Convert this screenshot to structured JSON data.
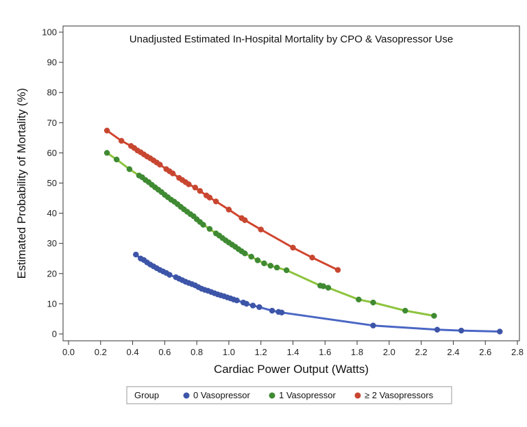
{
  "chart_data": {
    "type": "scatter",
    "title": "Unadjusted Estimated In-Hospital Mortality by CPO & Vasopressor Use",
    "xlabel": "Cardiac Power Output (Watts)",
    "ylabel": "Estimated Probability of Mortality (%)",
    "xlim": [
      0.0,
      2.8
    ],
    "ylim": [
      0,
      100
    ],
    "xticks": [
      0.0,
      0.2,
      0.4,
      0.6,
      0.8,
      1.0,
      1.2,
      1.4,
      1.6,
      1.8,
      2.0,
      2.2,
      2.4,
      2.6,
      2.8
    ],
    "xtick_labels": [
      "0.0",
      "0.2",
      "0.4",
      "0.6",
      "0.8",
      "1.0",
      "1.2",
      "1.4",
      "1.6",
      "1.8",
      "2.0",
      "2.2",
      "2.4",
      "2.6",
      "2.8"
    ],
    "yticks": [
      0,
      10,
      20,
      30,
      40,
      50,
      60,
      70,
      80,
      90,
      100
    ],
    "ytick_labels": [
      "0",
      "10",
      "20",
      "30",
      "40",
      "50",
      "60",
      "70",
      "80",
      "90",
      "100"
    ],
    "grid": false,
    "legend": {
      "title": "Group",
      "placement": "bottom",
      "entries": [
        "0 Vasopressor",
        "1 Vasopressor",
        "≥ 2 Vasopressors"
      ]
    },
    "series": [
      {
        "name": "0 Vasopressor",
        "marker_color": "#3d55a8",
        "line_color": "#4a66c4",
        "points": [
          [
            0.42,
            26.3
          ],
          [
            0.45,
            25.0
          ],
          [
            0.47,
            24.5
          ],
          [
            0.49,
            23.7
          ],
          [
            0.51,
            23.0
          ],
          [
            0.53,
            22.4
          ],
          [
            0.55,
            21.8
          ],
          [
            0.57,
            21.2
          ],
          [
            0.59,
            20.7
          ],
          [
            0.61,
            20.2
          ],
          [
            0.63,
            19.6
          ],
          [
            0.67,
            18.8
          ],
          [
            0.69,
            18.3
          ],
          [
            0.71,
            17.8
          ],
          [
            0.73,
            17.3
          ],
          [
            0.75,
            16.9
          ],
          [
            0.77,
            16.5
          ],
          [
            0.79,
            16.1
          ],
          [
            0.81,
            15.5
          ],
          [
            0.83,
            15.0
          ],
          [
            0.85,
            14.6
          ],
          [
            0.87,
            14.3
          ],
          [
            0.89,
            13.9
          ],
          [
            0.91,
            13.5
          ],
          [
            0.93,
            13.1
          ],
          [
            0.95,
            12.8
          ],
          [
            0.97,
            12.5
          ],
          [
            0.99,
            12.1
          ],
          [
            1.01,
            11.8
          ],
          [
            1.03,
            11.4
          ],
          [
            1.05,
            11.1
          ],
          [
            1.09,
            10.4
          ],
          [
            1.11,
            10.0
          ],
          [
            1.15,
            9.4
          ],
          [
            1.19,
            8.9
          ],
          [
            1.27,
            7.7
          ],
          [
            1.31,
            7.3
          ],
          [
            1.33,
            7.1
          ],
          [
            1.9,
            2.8
          ],
          [
            2.3,
            1.4
          ],
          [
            2.45,
            1.1
          ],
          [
            2.69,
            0.8
          ]
        ]
      },
      {
        "name": "1 Vasopressor",
        "marker_color": "#3f8a32",
        "line_color": "#8cc43c",
        "points": [
          [
            0.24,
            60.0
          ],
          [
            0.3,
            57.8
          ],
          [
            0.38,
            54.6
          ],
          [
            0.44,
            52.5
          ],
          [
            0.46,
            51.9
          ],
          [
            0.48,
            51.0
          ],
          [
            0.5,
            50.3
          ],
          [
            0.52,
            49.4
          ],
          [
            0.54,
            48.6
          ],
          [
            0.56,
            47.8
          ],
          [
            0.58,
            47.0
          ],
          [
            0.6,
            46.1
          ],
          [
            0.62,
            45.3
          ],
          [
            0.64,
            44.5
          ],
          [
            0.66,
            43.8
          ],
          [
            0.68,
            43.0
          ],
          [
            0.7,
            42.1
          ],
          [
            0.72,
            41.3
          ],
          [
            0.74,
            40.5
          ],
          [
            0.76,
            39.7
          ],
          [
            0.78,
            39.0
          ],
          [
            0.8,
            38.0
          ],
          [
            0.82,
            37.1
          ],
          [
            0.84,
            36.2
          ],
          [
            0.88,
            34.8
          ],
          [
            0.92,
            33.3
          ],
          [
            0.94,
            32.6
          ],
          [
            0.96,
            31.8
          ],
          [
            0.98,
            31.0
          ],
          [
            1.0,
            30.3
          ],
          [
            1.02,
            29.6
          ],
          [
            1.04,
            28.9
          ],
          [
            1.06,
            28.1
          ],
          [
            1.08,
            27.4
          ],
          [
            1.1,
            26.7
          ],
          [
            1.14,
            25.6
          ],
          [
            1.18,
            24.4
          ],
          [
            1.22,
            23.4
          ],
          [
            1.26,
            22.6
          ],
          [
            1.3,
            22.0
          ],
          [
            1.36,
            21.1
          ],
          [
            1.57,
            16.0
          ],
          [
            1.59,
            15.8
          ],
          [
            1.62,
            15.3
          ],
          [
            1.81,
            11.4
          ],
          [
            1.9,
            10.4
          ],
          [
            2.1,
            7.7
          ],
          [
            2.28,
            6.0
          ]
        ]
      },
      {
        "name": "≥ 2 Vasopressors",
        "marker_color": "#c84630",
        "line_color": "#d0452f",
        "points": [
          [
            0.24,
            67.4
          ],
          [
            0.33,
            64.0
          ],
          [
            0.39,
            62.3
          ],
          [
            0.41,
            61.6
          ],
          [
            0.43,
            60.8
          ],
          [
            0.45,
            60.2
          ],
          [
            0.47,
            59.5
          ],
          [
            0.49,
            58.8
          ],
          [
            0.51,
            58.2
          ],
          [
            0.53,
            57.5
          ],
          [
            0.55,
            56.8
          ],
          [
            0.57,
            56.1
          ],
          [
            0.61,
            54.6
          ],
          [
            0.63,
            53.9
          ],
          [
            0.65,
            53.2
          ],
          [
            0.69,
            51.7
          ],
          [
            0.71,
            51.0
          ],
          [
            0.73,
            50.3
          ],
          [
            0.75,
            49.6
          ],
          [
            0.79,
            48.5
          ],
          [
            0.82,
            47.4
          ],
          [
            0.86,
            45.9
          ],
          [
            0.88,
            45.2
          ],
          [
            0.92,
            43.9
          ],
          [
            1.0,
            41.2
          ],
          [
            1.08,
            38.4
          ],
          [
            1.1,
            37.7
          ],
          [
            1.2,
            34.6
          ],
          [
            1.4,
            28.6
          ],
          [
            1.52,
            25.3
          ],
          [
            1.68,
            21.2
          ]
        ]
      }
    ]
  }
}
